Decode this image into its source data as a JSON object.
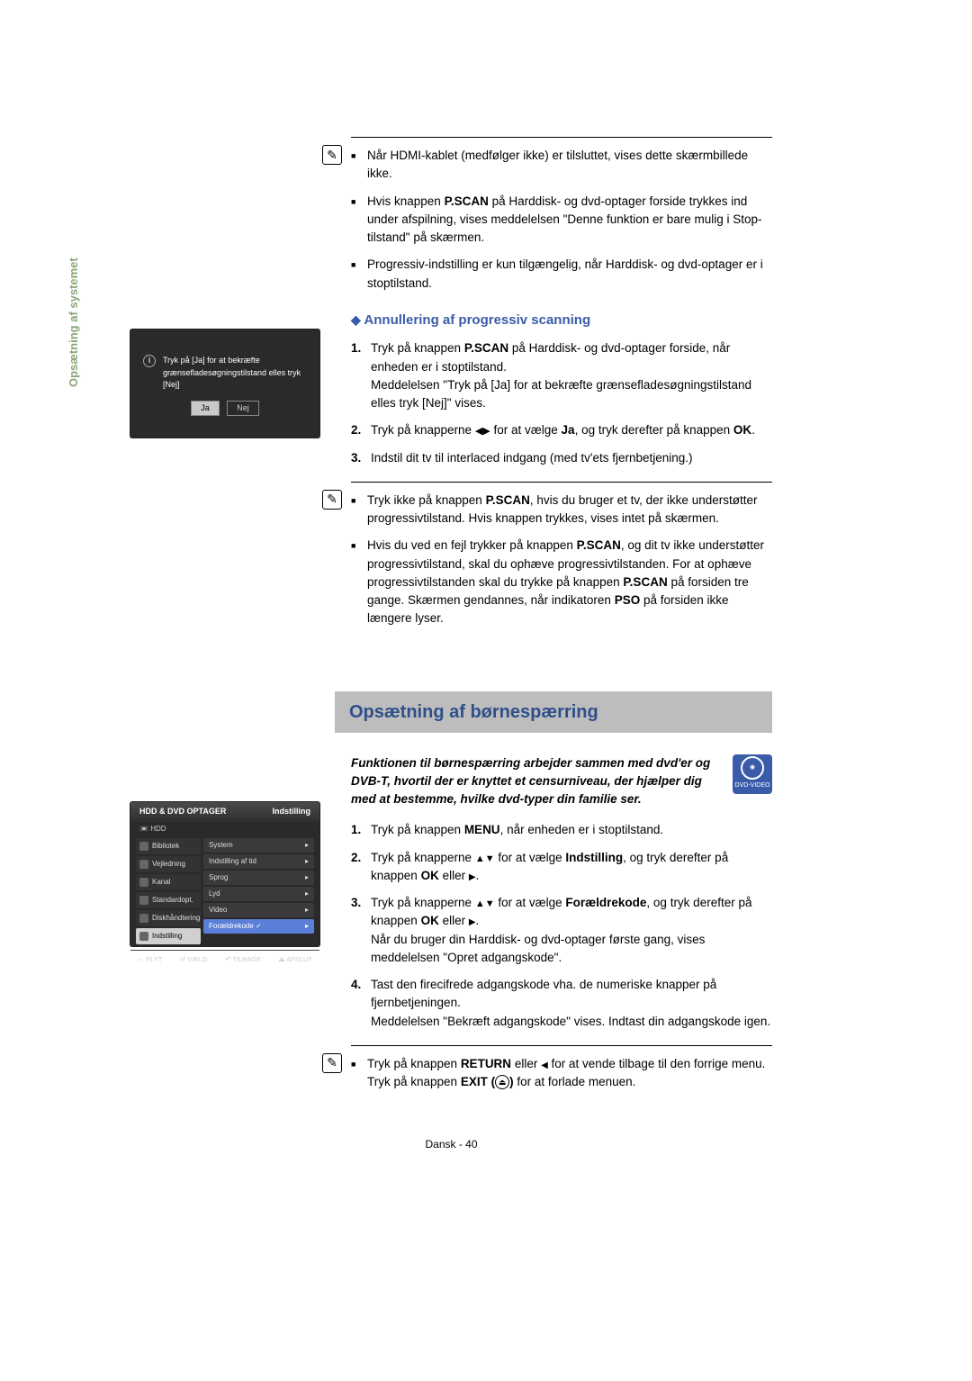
{
  "sidebar_label": "Opsætning af systemet",
  "note1": {
    "items": [
      "Når HDMI-kablet (medfølger ikke) er tilsluttet, vises dette skærmbillede ikke.",
      "Hvis knappen <b>P.SCAN</b> på Harddisk- og dvd-optager forside trykkes ind under afspilning, vises meddelelsen \"Denne funktion er bare mulig i Stop-tilstand\" på skærmen.",
      "Progressiv-indstilling er kun tilgængelig, når Harddisk- og dvd-optager er i stoptilstand."
    ]
  },
  "tv1": {
    "text": "Tryk på [Ja] for at bekræfte grænsefladesøgningstilstand elles tryk [Nej]",
    "yes": "Ja",
    "no": "Nej"
  },
  "sub_heading": "Annullering af progressiv scanning",
  "steps1": [
    "Tryk på knappen <b>P.SCAN</b> på Harddisk- og dvd-optager forside, når enheden er i stoptilstand.<br>Meddelelsen \"Tryk på [Ja] for at bekræfte grænsefladesøgningstilstand elles tryk [Nej]\" vises.",
    "Tryk på knapperne <span class=\"arrow-lr\"></span> for at vælge <b>Ja</b>, og tryk derefter på knappen <b>OK</b>.",
    "Indstil dit tv til interlaced indgang (med tv'ets fjernbetjening.)"
  ],
  "note2": {
    "items": [
      "Tryk ikke på knappen <b>P.SCAN</b>, hvis du bruger et tv, der ikke understøtter progressivtilstand. Hvis knappen trykkes, vises intet på skærmen.",
      "Hvis du ved en fejl trykker på knappen <b>P.SCAN</b>, og dit tv ikke understøtter progressivtilstand, skal du ophæve progressivtilstanden. For at ophæve progressivtilstanden skal du trykke på knappen <b>P.SCAN</b> på forsiden tre gange. Skærmen gendannes, når indikatoren <b>PSO</b> på forsiden ikke længere lyser."
    ]
  },
  "section_title": "Opsætning af børnespærring",
  "tv2": {
    "title": "HDD & DVD OPTAGER",
    "title_right": "Indstilling",
    "sub": "HDD",
    "left_items": [
      "Bibliotek",
      "Vejledning",
      "Kanal",
      "Standardopt.",
      "Diskhåndtering",
      "Indstilling"
    ],
    "left_selected_index": 5,
    "right_items": [
      {
        "label": "System"
      },
      {
        "label": "Indstilling af tid"
      },
      {
        "label": "Sprog"
      },
      {
        "label": "Lyd"
      },
      {
        "label": "Video"
      },
      {
        "label": "Forældrekode ✓",
        "sel": true
      }
    ],
    "footer": [
      "FLYT",
      "VÆLG",
      "TILBAGE",
      "AFSLUT"
    ]
  },
  "dvd_badge": "DVD-VIDEO",
  "intro": "Funktionen til børnespærring arbejder sammen med dvd'er og DVB-T, hvortil der er knyttet et censurniveau, der hjælper dig med at bestemme, hvilke dvd-typer din familie ser.",
  "steps2": [
    "Tryk på knappen <b>MENU</b>, når enheden er i stoptilstand.",
    "Tryk på knapperne <span class=\"arrow-ud\"></span> for at vælge <b>Indstilling</b>, og tryk derefter på knappen <b>OK</b> eller <span class=\"arrow-r\"></span>.",
    "Tryk på knapperne <span class=\"arrow-ud\"></span> for at vælge <b>Forældrekode</b>, og tryk derefter på knappen <b>OK</b> eller <span class=\"arrow-r\"></span>.<br>Når du bruger din Harddisk- og dvd-optager første gang, vises meddelelsen \"Opret adgangskode\".",
    "Tast den firecifrede adgangskode vha. de numeriske knapper på fjernbetjeningen.<br>Meddelelsen \"Bekræft adgangskode\" vises. Indtast din adgangskode igen."
  ],
  "note3": {
    "items": [
      "Tryk på knappen <b>RETURN</b> eller <span class=\"arrow-l\"></span> for at vende tilbage til den forrige menu.<br>Tryk på knappen <b>EXIT (</b><span class=\"exit-icon\">⏏</span><b>)</b> for at forlade menuen."
    ]
  },
  "footer": "Dansk - 40"
}
